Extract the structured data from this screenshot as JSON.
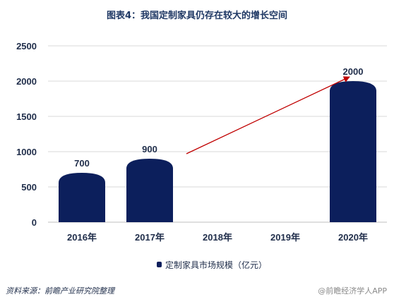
{
  "chart_data": {
    "type": "bar",
    "title": "图表4：我国定制家具仍存在较大的增长空间",
    "categories": [
      "2016年",
      "2017年",
      "2018年",
      "2019年",
      "2020年"
    ],
    "series": [
      {
        "name": "定制家具市场规模（亿元）",
        "values": [
          700,
          900,
          null,
          null,
          2000
        ]
      }
    ],
    "data_labels": [
      "700",
      "900",
      "",
      "",
      "2000"
    ],
    "y_ticks": [
      0,
      500,
      1000,
      1500,
      2000,
      2500
    ],
    "ylim": [
      0,
      2500
    ],
    "xlabel": "",
    "ylabel": "",
    "grid": true,
    "legend": "bottom-center",
    "bar_color": "#0c1f5c",
    "annotation": {
      "type": "trend-arrow",
      "from_category": "2017年",
      "to_category": "2020年",
      "color": "#c00000"
    }
  },
  "footer": {
    "source": "资料来源：前瞻产业研究院整理",
    "watermark": "@前瞻经济学人APP"
  }
}
